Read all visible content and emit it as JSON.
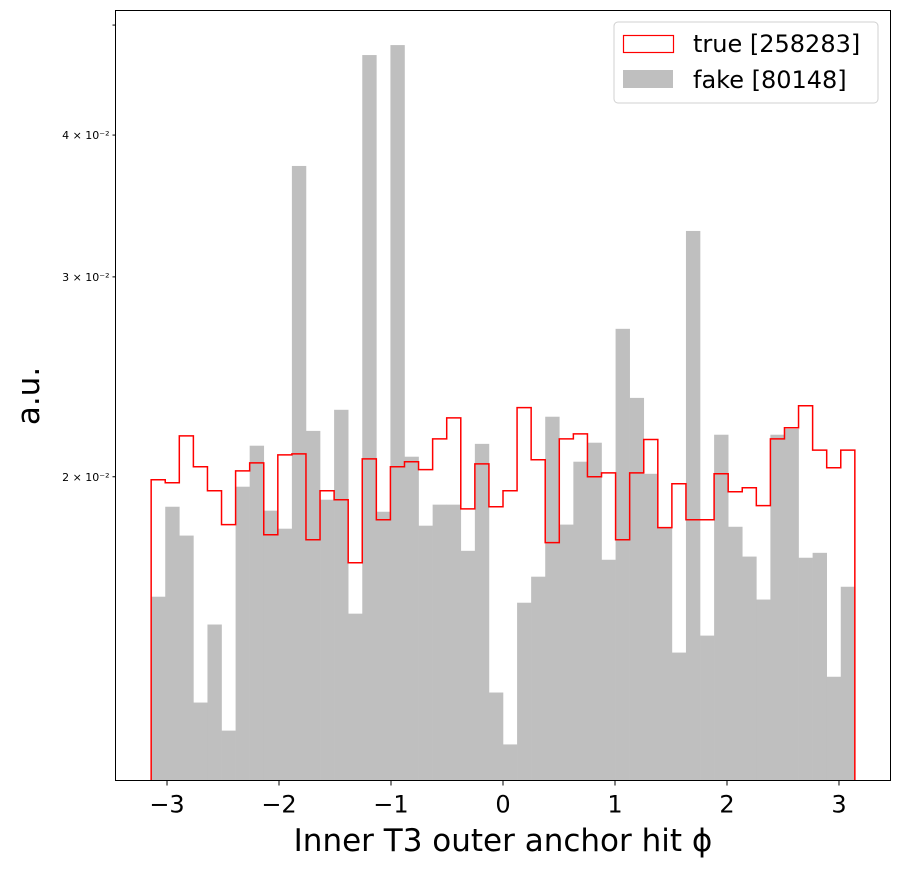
{
  "chart_data": {
    "type": "histogram",
    "xlabel": "Inner T3 outer anchor hit ϕ",
    "ylabel": "a.u.",
    "yscale": "log",
    "xlim": [
      -3.46,
      3.46
    ],
    "ylim": [
      0.0108,
      0.0515
    ],
    "x_ticks": [
      -3,
      -2,
      -1,
      0,
      1,
      2,
      3
    ],
    "x_tick_labels": [
      "−3",
      "−2",
      "−1",
      "0",
      "1",
      "2",
      "3"
    ],
    "y_ticks": [
      0.02,
      0.03,
      0.04,
      0.05
    ],
    "y_tick_labels": [
      "2 × 10⁻²",
      "3 × 10⁻²",
      "4 × 10⁻²",
      ""
    ],
    "bin_range": [
      -3.14159,
      3.14159
    ],
    "n_bins": 50,
    "legend_position": "top-right",
    "series": [
      {
        "name": "true [258283]",
        "style": "step",
        "color": "#ff0000",
        "values": [
          0.01988,
          0.01976,
          0.02173,
          0.02041,
          0.01944,
          0.01815,
          0.02024,
          0.02057,
          0.01778,
          0.02091,
          0.02095,
          0.0176,
          0.01944,
          0.01909,
          0.0168,
          0.02074,
          0.01833,
          0.02041,
          0.02062,
          0.02029,
          0.0216,
          0.02254,
          0.01874,
          0.02053,
          0.01882,
          0.01944,
          0.02301,
          0.0207,
          0.0175,
          0.0216,
          0.02182,
          0.02,
          0.02016,
          0.0176,
          0.02016,
          0.02157,
          0.01804,
          0.01972,
          0.01833,
          0.01833,
          0.02012,
          0.0194,
          0.01956,
          0.01886,
          0.0216,
          0.02209,
          0.0231,
          0.02111,
          0.02037,
          0.02111
        ]
      },
      {
        "name": "fake [80148]",
        "style": "filled",
        "color": "#bfbfbf",
        "values": [
          0.01568,
          0.01882,
          0.01775,
          0.01265,
          0.01482,
          0.01195,
          0.0196,
          0.0213,
          0.01867,
          0.018,
          0.03757,
          0.02195,
          0.01909,
          0.02291,
          0.01515,
          0.04705,
          0.01863,
          0.04801,
          0.02083,
          0.01811,
          0.0189,
          0.0189,
          0.01721,
          0.02138,
          0.01291,
          0.01162,
          0.01549,
          0.01633,
          0.02259,
          0.01815,
          0.02062,
          0.02143,
          0.0169,
          0.027,
          0.02347,
          0.02012,
          0.01804,
          0.014,
          0.03293,
          0.01449,
          0.02178,
          0.01807,
          0.01701,
          0.01559,
          0.02178,
          0.02204,
          0.01697,
          0.01714,
          0.01333,
          0.016
        ]
      }
    ]
  }
}
